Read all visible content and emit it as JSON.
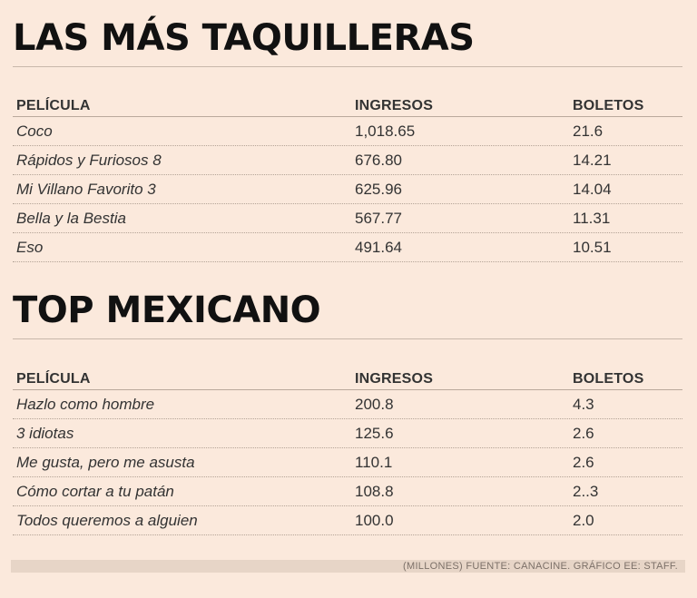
{
  "chart_data": [
    {
      "type": "table",
      "title": "LAS MÁS TAQUILLERAS",
      "columns": [
        "PELÍCULA",
        "INGRESOS",
        "BOLETOS"
      ],
      "rows": [
        [
          "Coco",
          "1,018.65",
          "21.6"
        ],
        [
          "Rápidos y Furiosos 8",
          "676.80",
          "14.21"
        ],
        [
          "Mi Villano Favorito 3",
          "625.96",
          "14.04"
        ],
        [
          "Bella y la Bestia",
          "567.77",
          "11.31"
        ],
        [
          "Eso",
          "491.64",
          "10.51"
        ]
      ]
    },
    {
      "type": "table",
      "title": "TOP MEXICANO",
      "columns": [
        "PELÍCULA",
        "INGRESOS",
        "BOLETOS"
      ],
      "rows": [
        [
          "Hazlo como hombre",
          "200.8",
          "4.3"
        ],
        [
          "3 idiotas",
          "125.6",
          "2.6"
        ],
        [
          "Me gusta, pero me asusta",
          "110.1",
          "2.6"
        ],
        [
          "Cómo cortar a tu patán",
          "108.8",
          "2..3"
        ],
        [
          "Todos queremos a alguien",
          "100.0",
          "2.0"
        ]
      ]
    }
  ],
  "footer": "(MILLONES) FUENTE: CANACINE.  GRÁFICO EE: STAFF."
}
